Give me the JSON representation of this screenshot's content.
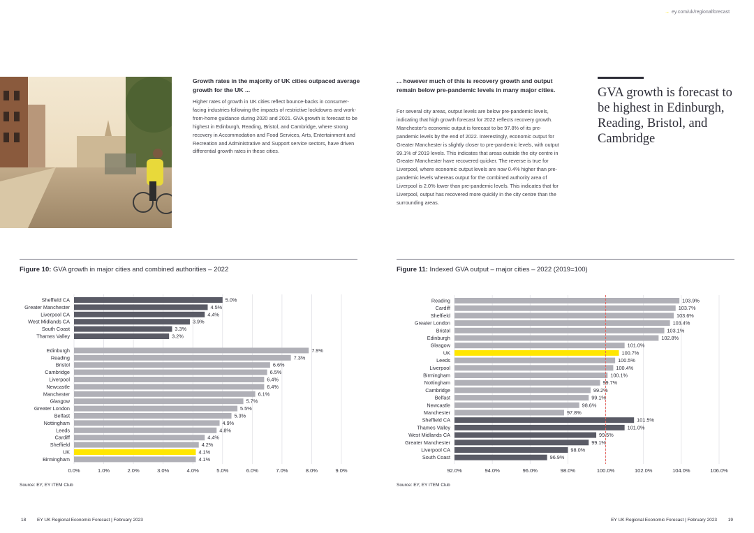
{
  "header": {
    "url": "ey.com/uk/regionalforecast"
  },
  "left_column": {
    "heading": "Growth rates in the majority of UK cities outpaced average growth for the UK ...",
    "body": "Higher rates of growth in UK cities reflect bounce-backs in consumer-facing industries following the impacts of restrictive lockdowns and work-from-home guidance during 2020 and 2021. GVA growth is forecast to be highest in Edinburgh, Reading, Bristol, and Cambridge, where strong recovery in Accommodation and Food Services, Arts, Entertainment and Recreation and Administrative and Support service sectors, have driven differential growth rates in these cities."
  },
  "middle_column": {
    "heading": "... however much of this is recovery growth and output remain below pre-pandemic levels in many major cities.",
    "body": "For several city areas, output levels are below pre-pandemic levels, indicating that high growth forecast for 2022 reflects recovery growth. Manchester's economic output is forecast to be 97.8% of its pre-pandemic levels by the end of 2022. Interestingly, economic output for Greater Manchester is slightly closer to pre-pandemic levels, with output 99.1% of 2019 levels. This indicates that areas outside the city centre in Greater Manchester have recovered quicker. The reverse is true for Liverpool, where economic output levels are now 0.4% higher than pre-pandemic levels whereas output for the combined authority area of Liverpool is 2.0% lower than pre-pandemic levels. This indicates that for Liverpool, output has recovered more quickly in the city centre than the surrounding areas."
  },
  "pull_quote": "GVA growth is forecast to be highest in Edinburgh, Reading, Bristol, and Cambridge",
  "figure10": {
    "label": "Figure 10:",
    "title": "GVA growth in major cities and combined authorities – 2022",
    "source": "Source: EY, EY ITEM Club"
  },
  "figure11": {
    "label": "Figure 11:",
    "title": "Indexed GVA output – major cities – 2022 (2019=100)",
    "source": "Source: EY, EY ITEM Club"
  },
  "footer": {
    "left_page": "18",
    "left_text": "EY UK Regional Economic Forecast  |  February 2023",
    "right_text": "EY UK Regional Economic Forecast  |  February 2023",
    "right_page": "19"
  },
  "colors": {
    "dark": "#5a5b66",
    "light": "#b0b0b7",
    "highlight": "#ffe600",
    "reference_line": "#e8615a"
  },
  "chart_data": [
    {
      "type": "bar",
      "orientation": "horizontal",
      "xlim": [
        0,
        9
      ],
      "xticks": [
        "0.0%",
        "1.0%",
        "2.0%",
        "3.0%",
        "4.0%",
        "5.0%",
        "6.0%",
        "7.0%",
        "8.0%",
        "9.0%"
      ],
      "grid": true,
      "groups": [
        {
          "bars": [
            {
              "category": "Sheffield CA",
              "value": 5.0,
              "label": "5.0%",
              "style": "dark"
            },
            {
              "category": "Greater Manchester",
              "value": 4.5,
              "label": "4.5%",
              "style": "dark"
            },
            {
              "category": "Liverpool CA",
              "value": 4.4,
              "label": "4.4%",
              "style": "dark"
            },
            {
              "category": "West Midlands CA",
              "value": 3.9,
              "label": "3.9%",
              "style": "dark"
            },
            {
              "category": "South Coast",
              "value": 3.3,
              "label": "3.3%",
              "style": "dark"
            },
            {
              "category": "Thames Valley",
              "value": 3.2,
              "label": "3.2%",
              "style": "dark"
            }
          ]
        },
        {
          "bars": [
            {
              "category": "Edinburgh",
              "value": 7.9,
              "label": "7.9%",
              "style": "light"
            },
            {
              "category": "Reading",
              "value": 7.3,
              "label": "7.3%",
              "style": "light"
            },
            {
              "category": "Bristol",
              "value": 6.6,
              "label": "6.6%",
              "style": "light"
            },
            {
              "category": "Cambridge",
              "value": 6.5,
              "label": "6.5%",
              "style": "light"
            },
            {
              "category": "Liverpool",
              "value": 6.4,
              "label": "6.4%",
              "style": "light"
            },
            {
              "category": "Newcastle",
              "value": 6.4,
              "label": "6.4%",
              "style": "light"
            },
            {
              "category": "Manchester",
              "value": 6.1,
              "label": "6.1%",
              "style": "light"
            },
            {
              "category": "Glasgow",
              "value": 5.7,
              "label": "5.7%",
              "style": "light"
            },
            {
              "category": "Greater London",
              "value": 5.5,
              "label": "5.5%",
              "style": "light"
            },
            {
              "category": "Belfast",
              "value": 5.3,
              "label": "5.3%",
              "style": "light"
            },
            {
              "category": "Nottingham",
              "value": 4.9,
              "label": "4.9%",
              "style": "light"
            },
            {
              "category": "Leeds",
              "value": 4.8,
              "label": "4.8%",
              "style": "light"
            },
            {
              "category": "Cardiff",
              "value": 4.4,
              "label": "4.4%",
              "style": "light"
            },
            {
              "category": "Sheffield",
              "value": 4.2,
              "label": "4.2%",
              "style": "light"
            },
            {
              "category": "UK",
              "value": 4.1,
              "label": "4.1%",
              "style": "highlight"
            },
            {
              "category": "Birmingham",
              "value": 4.1,
              "label": "4.1%",
              "style": "light"
            }
          ]
        }
      ]
    },
    {
      "type": "bar",
      "orientation": "horizontal",
      "xlim": [
        92,
        106
      ],
      "xticks": [
        "92.0%",
        "94.0%",
        "96.0%",
        "98.0%",
        "100.0%",
        "102.0%",
        "104.0%",
        "106.0%"
      ],
      "reference_line": 100,
      "grid": true,
      "groups": [
        {
          "bars": [
            {
              "category": "Reading",
              "value": 103.9,
              "label": "103.9%",
              "style": "light"
            },
            {
              "category": "Cardiff",
              "value": 103.7,
              "label": "103.7%",
              "style": "light"
            },
            {
              "category": "Sheffield",
              "value": 103.6,
              "label": "103.6%",
              "style": "light"
            },
            {
              "category": "Greater London",
              "value": 103.4,
              "label": "103.4%",
              "style": "light"
            },
            {
              "category": "Bristol",
              "value": 103.1,
              "label": "103.1%",
              "style": "light"
            },
            {
              "category": "Edinburgh",
              "value": 102.8,
              "label": "102.8%",
              "style": "light"
            },
            {
              "category": "Glasgow",
              "value": 101.0,
              "label": "101.0%",
              "style": "light"
            },
            {
              "category": "UK",
              "value": 100.7,
              "label": "100.7%",
              "style": "highlight"
            },
            {
              "category": "Leeds",
              "value": 100.5,
              "label": "100.5%",
              "style": "light"
            },
            {
              "category": "Liverpool",
              "value": 100.4,
              "label": "100.4%",
              "style": "light"
            },
            {
              "category": "Birmingham",
              "value": 100.1,
              "label": "100.1%",
              "style": "light"
            },
            {
              "category": "Nottingham",
              "value": 99.7,
              "label": "99.7%",
              "style": "light"
            },
            {
              "category": "Cambridge",
              "value": 99.2,
              "label": "99.2%",
              "style": "light"
            },
            {
              "category": "Belfast",
              "value": 99.1,
              "label": "99.1%",
              "style": "light"
            },
            {
              "category": "Newcastle",
              "value": 98.6,
              "label": "98.6%",
              "style": "light"
            },
            {
              "category": "Manchester",
              "value": 97.8,
              "label": "97.8%",
              "style": "light"
            },
            {
              "category": "Sheffield CA",
              "value": 101.5,
              "label": "101.5%",
              "style": "dark"
            },
            {
              "category": "Thames Valley",
              "value": 101.0,
              "label": "101.0%",
              "style": "dark"
            },
            {
              "category": "West Midlands CA",
              "value": 99.5,
              "label": "99.5%",
              "style": "dark"
            },
            {
              "category": "Greater Manchester",
              "value": 99.1,
              "label": "99.1%",
              "style": "dark"
            },
            {
              "category": "Liverpool CA",
              "value": 98.0,
              "label": "98.0%",
              "style": "dark"
            },
            {
              "category": "South Coast",
              "value": 96.9,
              "label": "96.9%",
              "style": "dark"
            }
          ]
        }
      ]
    }
  ]
}
